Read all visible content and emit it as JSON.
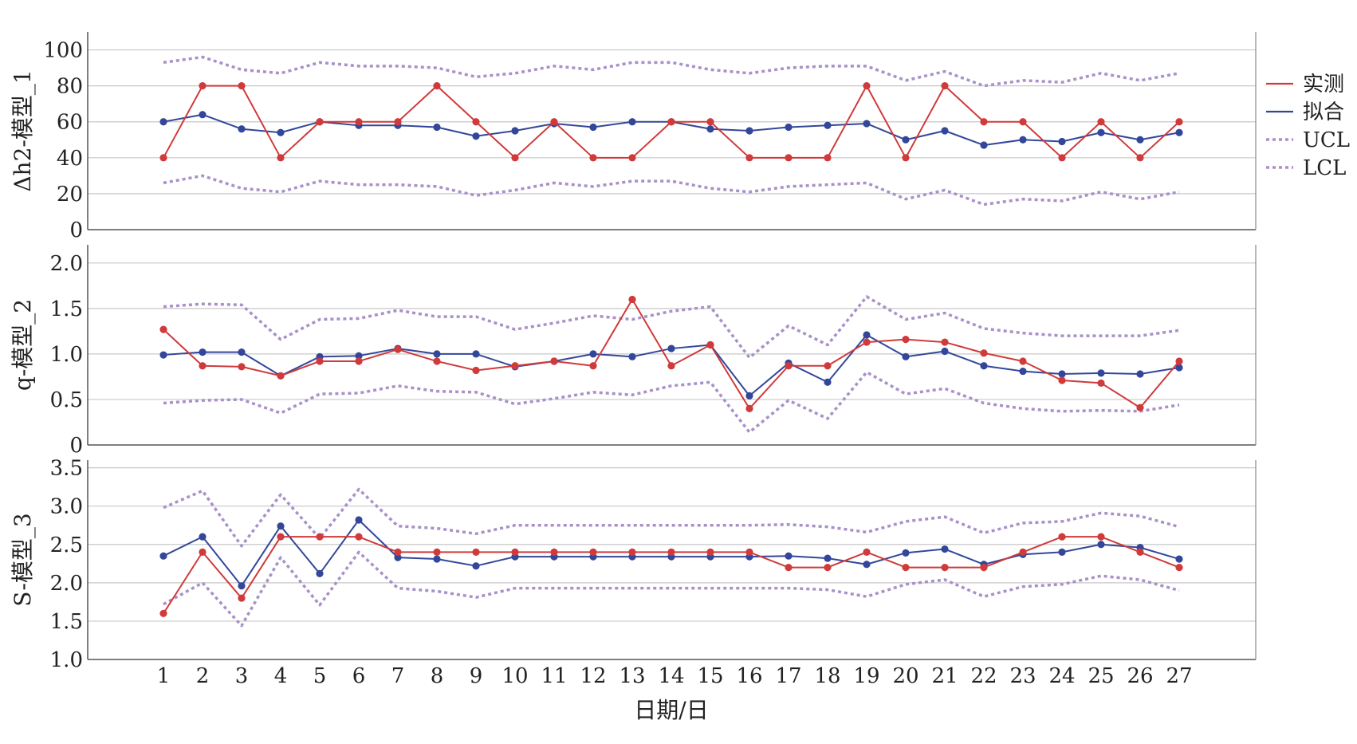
{
  "chart_data": {
    "type": "line",
    "xlabel": "日期/日",
    "x": [
      1,
      2,
      3,
      4,
      5,
      6,
      7,
      8,
      9,
      10,
      11,
      12,
      13,
      14,
      15,
      16,
      17,
      18,
      19,
      20,
      21,
      22,
      23,
      24,
      25,
      26,
      27
    ],
    "legend": {
      "position": "right",
      "entries": [
        {
          "label": "实测",
          "color": "#d03a3a",
          "style": "solid"
        },
        {
          "label": "拟合",
          "color": "#33479a",
          "style": "solid"
        },
        {
          "label": "UCL",
          "color": "#a891c8",
          "style": "dotted"
        },
        {
          "label": "LCL",
          "color": "#a891c8",
          "style": "dotted"
        }
      ]
    },
    "panels": [
      {
        "ylabel": "Δh2-模型_1",
        "ylim": [
          0,
          110
        ],
        "yticks": [
          0,
          20,
          40,
          60,
          80,
          100
        ],
        "ytick_labels": [
          "0",
          "20",
          "40",
          "60",
          "80",
          "100"
        ],
        "grid": true,
        "series": [
          {
            "name": "实测",
            "values": [
              40,
              80,
              80,
              40,
              60,
              60,
              60,
              80,
              60,
              40,
              60,
              40,
              40,
              60,
              60,
              40,
              40,
              40,
              80,
              40,
              80,
              60,
              60,
              40,
              60,
              40,
              60
            ]
          },
          {
            "name": "拟合",
            "values": [
              60,
              64,
              56,
              54,
              60,
              58,
              58,
              57,
              52,
              55,
              59,
              57,
              60,
              60,
              56,
              55,
              57,
              58,
              59,
              50,
              55,
              47,
              50,
              49,
              54,
              50,
              54
            ]
          },
          {
            "name": "UCL",
            "values": [
              93,
              96,
              89,
              87,
              93,
              91,
              91,
              90,
              85,
              87,
              91,
              89,
              93,
              93,
              89,
              87,
              90,
              91,
              91,
              83,
              88,
              80,
              83,
              82,
              87,
              83,
              87
            ]
          },
          {
            "name": "LCL",
            "values": [
              26,
              30,
              23,
              21,
              27,
              25,
              25,
              24,
              19,
              22,
              26,
              24,
              27,
              27,
              23,
              21,
              24,
              25,
              26,
              17,
              22,
              14,
              17,
              16,
              21,
              17,
              21
            ]
          }
        ]
      },
      {
        "ylabel": "q-模型_2",
        "ylim": [
          0,
          2.2
        ],
        "yticks": [
          0,
          0.5,
          1.0,
          1.5,
          2.0
        ],
        "ytick_labels": [
          "0",
          "0.5",
          "1.0",
          "1.5",
          "2.0"
        ],
        "grid": true,
        "series": [
          {
            "name": "实测",
            "values": [
              1.27,
              0.87,
              0.86,
              0.76,
              0.92,
              0.92,
              1.05,
              0.92,
              0.82,
              0.87,
              0.92,
              0.87,
              1.6,
              0.87,
              1.1,
              0.4,
              0.87,
              0.87,
              1.13,
              1.16,
              1.13,
              1.01,
              0.92,
              0.71,
              0.68,
              0.41,
              0.92
            ]
          },
          {
            "name": "拟合",
            "values": [
              0.99,
              1.02,
              1.02,
              0.76,
              0.97,
              0.98,
              1.06,
              1.0,
              1.0,
              0.86,
              0.92,
              1.0,
              0.97,
              1.06,
              1.1,
              0.54,
              0.9,
              0.69,
              1.21,
              0.97,
              1.03,
              0.87,
              0.81,
              0.78,
              0.79,
              0.78,
              0.85
            ]
          },
          {
            "name": "UCL",
            "values": [
              1.52,
              1.55,
              1.54,
              1.16,
              1.38,
              1.39,
              1.48,
              1.41,
              1.41,
              1.27,
              1.34,
              1.42,
              1.38,
              1.47,
              1.52,
              0.96,
              1.31,
              1.1,
              1.63,
              1.38,
              1.45,
              1.28,
              1.23,
              1.2,
              1.2,
              1.2,
              1.26
            ]
          },
          {
            "name": "LCL",
            "values": [
              0.46,
              0.49,
              0.5,
              0.35,
              0.56,
              0.57,
              0.65,
              0.59,
              0.58,
              0.45,
              0.51,
              0.58,
              0.55,
              0.65,
              0.69,
              0.14,
              0.49,
              0.29,
              0.8,
              0.56,
              0.62,
              0.46,
              0.4,
              0.37,
              0.38,
              0.37,
              0.44
            ]
          }
        ]
      },
      {
        "ylabel": "S-模型_3",
        "ylim": [
          1.0,
          3.6
        ],
        "yticks": [
          1.0,
          1.5,
          2.0,
          2.5,
          3.0,
          3.5
        ],
        "ytick_labels": [
          "1.0",
          "1.5",
          "2.0",
          "2.5",
          "3.0",
          "3.5"
        ],
        "grid": true,
        "series": [
          {
            "name": "实测",
            "values": [
              1.6,
              2.4,
              1.8,
              2.6,
              2.6,
              2.6,
              2.4,
              2.4,
              2.4,
              2.4,
              2.4,
              2.4,
              2.4,
              2.4,
              2.4,
              2.4,
              2.2,
              2.2,
              2.4,
              2.2,
              2.2,
              2.2,
              2.4,
              2.6,
              2.6,
              2.4,
              2.2
            ]
          },
          {
            "name": "拟合",
            "values": [
              2.35,
              2.6,
              1.96,
              2.74,
              2.12,
              2.82,
              2.33,
              2.31,
              2.22,
              2.34,
              2.34,
              2.34,
              2.34,
              2.34,
              2.34,
              2.34,
              2.35,
              2.32,
              2.24,
              2.39,
              2.44,
              2.24,
              2.37,
              2.4,
              2.5,
              2.46,
              2.31
            ]
          },
          {
            "name": "UCL",
            "values": [
              2.98,
              3.2,
              2.48,
              3.15,
              2.58,
              3.22,
              2.74,
              2.71,
              2.64,
              2.75,
              2.75,
              2.75,
              2.75,
              2.75,
              2.75,
              2.75,
              2.76,
              2.73,
              2.66,
              2.8,
              2.86,
              2.65,
              2.78,
              2.8,
              2.91,
              2.87,
              2.73
            ]
          },
          {
            "name": "LCL",
            "values": [
              1.72,
              2.0,
              1.44,
              2.33,
              1.71,
              2.4,
              1.93,
              1.89,
              1.81,
              1.93,
              1.93,
              1.93,
              1.93,
              1.93,
              1.93,
              1.93,
              1.93,
              1.91,
              1.82,
              1.98,
              2.04,
              1.82,
              1.95,
              1.98,
              2.09,
              2.04,
              1.9
            ]
          }
        ]
      }
    ]
  }
}
